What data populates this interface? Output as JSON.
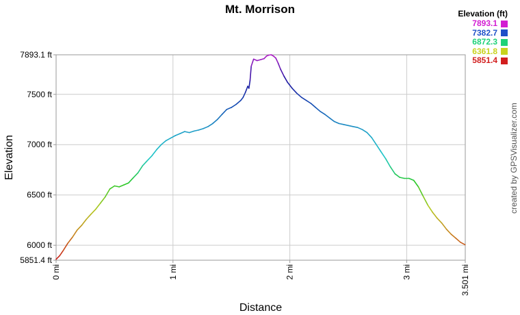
{
  "chart_data": {
    "type": "line",
    "title": "Mt. Morrison",
    "xlabel": "Distance",
    "ylabel": "Elevation",
    "x_unit": "mi",
    "y_unit": "ft",
    "xlim": [
      0,
      3.501
    ],
    "ylim": [
      5851.4,
      7893.1
    ],
    "x_ticks": [
      {
        "value": 0,
        "label": "0 mi"
      },
      {
        "value": 1,
        "label": "1 mi"
      },
      {
        "value": 2,
        "label": "2 mi"
      },
      {
        "value": 3,
        "label": "3 mi"
      },
      {
        "value": 3.501,
        "label": "3.501 mi"
      }
    ],
    "y_ticks": [
      {
        "value": 5851.4,
        "label": "5851.4 ft",
        "grid": false
      },
      {
        "value": 6000,
        "label": "6000 ft",
        "grid": true
      },
      {
        "value": 6500,
        "label": "6500 ft",
        "grid": true
      },
      {
        "value": 7000,
        "label": "7000 ft",
        "grid": true
      },
      {
        "value": 7500,
        "label": "7500 ft",
        "grid": true
      },
      {
        "value": 7893.1,
        "label": "7893.1 ft",
        "grid": false
      }
    ],
    "grid": true,
    "legend": {
      "title": "Elevation (ft)",
      "placement": "top-right",
      "entries": [
        {
          "label": "7893.1",
          "color": "#d21ed2"
        },
        {
          "label": "7382.7",
          "color": "#1e50c8"
        },
        {
          "label": "6872.3",
          "color": "#1ed278"
        },
        {
          "label": "6361.8",
          "color": "#c8d21e"
        },
        {
          "label": "5851.4",
          "color": "#d21e1e"
        }
      ]
    },
    "color_scale": [
      {
        "value": 5851.4,
        "color": "#c81414"
      },
      {
        "value": 6106.6,
        "color": "#c8821e"
      },
      {
        "value": 6361.8,
        "color": "#b4c81e"
      },
      {
        "value": 6617.1,
        "color": "#28c828"
      },
      {
        "value": 6872.3,
        "color": "#1ec8c8"
      },
      {
        "value": 7127.5,
        "color": "#1ea0c8"
      },
      {
        "value": 7382.7,
        "color": "#1450b4"
      },
      {
        "value": 7637.9,
        "color": "#1e14a0"
      },
      {
        "value": 7893.1,
        "color": "#b41ec8"
      }
    ],
    "series": [
      {
        "points": [
          [
            0.0,
            5860
          ],
          [
            0.03,
            5895
          ],
          [
            0.06,
            5945
          ],
          [
            0.1,
            6020
          ],
          [
            0.14,
            6080
          ],
          [
            0.18,
            6150
          ],
          [
            0.22,
            6200
          ],
          [
            0.26,
            6260
          ],
          [
            0.3,
            6310
          ],
          [
            0.34,
            6360
          ],
          [
            0.38,
            6420
          ],
          [
            0.42,
            6480
          ],
          [
            0.46,
            6560
          ],
          [
            0.5,
            6590
          ],
          [
            0.54,
            6580
          ],
          [
            0.58,
            6600
          ],
          [
            0.62,
            6620
          ],
          [
            0.66,
            6670
          ],
          [
            0.7,
            6720
          ],
          [
            0.74,
            6790
          ],
          [
            0.78,
            6840
          ],
          [
            0.82,
            6890
          ],
          [
            0.86,
            6950
          ],
          [
            0.9,
            7000
          ],
          [
            0.94,
            7040
          ],
          [
            0.98,
            7065
          ],
          [
            1.02,
            7090
          ],
          [
            1.06,
            7110
          ],
          [
            1.1,
            7130
          ],
          [
            1.14,
            7120
          ],
          [
            1.18,
            7135
          ],
          [
            1.22,
            7145
          ],
          [
            1.26,
            7160
          ],
          [
            1.3,
            7180
          ],
          [
            1.34,
            7210
          ],
          [
            1.38,
            7250
          ],
          [
            1.42,
            7300
          ],
          [
            1.46,
            7350
          ],
          [
            1.5,
            7370
          ],
          [
            1.54,
            7400
          ],
          [
            1.58,
            7440
          ],
          [
            1.6,
            7470
          ],
          [
            1.62,
            7520
          ],
          [
            1.64,
            7580
          ],
          [
            1.65,
            7560
          ],
          [
            1.66,
            7640
          ],
          [
            1.67,
            7780
          ],
          [
            1.69,
            7850
          ],
          [
            1.72,
            7835
          ],
          [
            1.75,
            7845
          ],
          [
            1.78,
            7855
          ],
          [
            1.8,
            7880
          ],
          [
            1.82,
            7890
          ],
          [
            1.84,
            7893
          ],
          [
            1.86,
            7880
          ],
          [
            1.88,
            7860
          ],
          [
            1.9,
            7810
          ],
          [
            1.92,
            7750
          ],
          [
            1.95,
            7680
          ],
          [
            1.98,
            7620
          ],
          [
            2.02,
            7560
          ],
          [
            2.06,
            7510
          ],
          [
            2.1,
            7470
          ],
          [
            2.14,
            7440
          ],
          [
            2.18,
            7410
          ],
          [
            2.22,
            7370
          ],
          [
            2.26,
            7330
          ],
          [
            2.3,
            7300
          ],
          [
            2.34,
            7265
          ],
          [
            2.38,
            7230
          ],
          [
            2.42,
            7210
          ],
          [
            2.46,
            7200
          ],
          [
            2.5,
            7190
          ],
          [
            2.54,
            7180
          ],
          [
            2.58,
            7170
          ],
          [
            2.62,
            7150
          ],
          [
            2.66,
            7120
          ],
          [
            2.7,
            7070
          ],
          [
            2.74,
            7000
          ],
          [
            2.78,
            6930
          ],
          [
            2.82,
            6860
          ],
          [
            2.86,
            6780
          ],
          [
            2.9,
            6710
          ],
          [
            2.94,
            6675
          ],
          [
            2.98,
            6665
          ],
          [
            3.02,
            6665
          ],
          [
            3.06,
            6645
          ],
          [
            3.1,
            6580
          ],
          [
            3.14,
            6490
          ],
          [
            3.18,
            6400
          ],
          [
            3.22,
            6330
          ],
          [
            3.26,
            6270
          ],
          [
            3.3,
            6220
          ],
          [
            3.34,
            6160
          ],
          [
            3.38,
            6110
          ],
          [
            3.42,
            6070
          ],
          [
            3.46,
            6030
          ],
          [
            3.5,
            6005
          ]
        ]
      }
    ]
  },
  "credit": "created by GPSVisualizer.com"
}
